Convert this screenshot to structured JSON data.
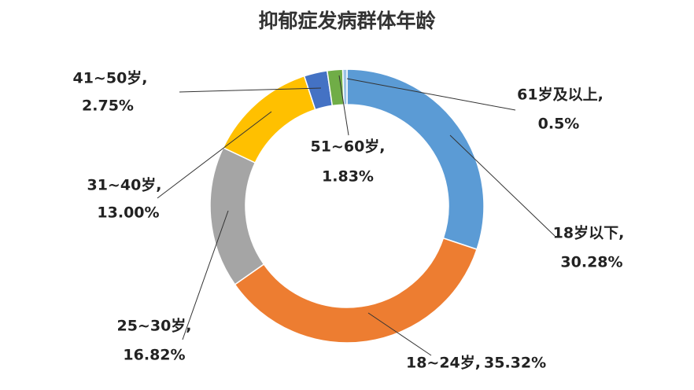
{
  "chart_data": {
    "type": "donut",
    "title": "抑郁症发病群体年龄",
    "categories": [
      "18岁以下,",
      "18~24岁,",
      "25~30岁,",
      "31~40岁,",
      "41~50岁,",
      "51~60岁,",
      "61岁及以上,"
    ],
    "values": [
      30.28,
      35.32,
      16.82,
      13.0,
      2.75,
      1.83,
      0.5
    ],
    "value_labels": [
      "30.28%",
      "35.32%",
      "16.82%",
      "13.00%",
      "2.75%",
      "1.83%",
      "0.5%"
    ],
    "colors": [
      "#5b9bd5",
      "#ed7d31",
      "#a5a5a5",
      "#ffc000",
      "#4472c4",
      "#70ad47",
      "#9dc3e6"
    ]
  }
}
